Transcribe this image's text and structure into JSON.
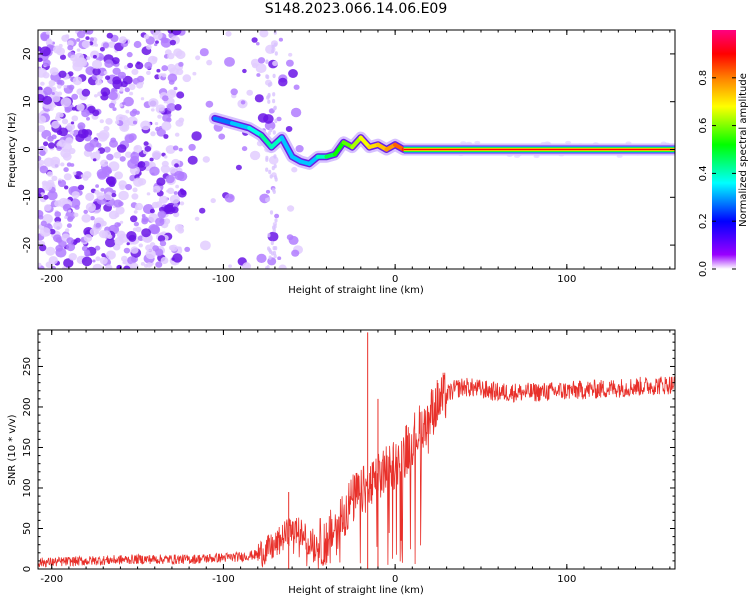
{
  "figure": {
    "title": "S148.2023.066.14.06.E09"
  },
  "colors": {
    "snr_line": "#e8302a",
    "ridge_low": "#6020e0",
    "ridge_high": "#ff2020",
    "noise_light": "#d9b9ff",
    "noise_dark": "#7a1fe8"
  },
  "chart_data": [
    {
      "type": "heatmap",
      "title": "",
      "xlabel": "Height of straight line (km)",
      "ylabel": "Frequency (Hz)",
      "xlim": [
        -208,
        163
      ],
      "ylim": [
        -25,
        25
      ],
      "x_ticks": [
        -200,
        -100,
        0,
        100
      ],
      "y_ticks": [
        -20,
        -10,
        0,
        10,
        20
      ],
      "colorbar": {
        "label": "Normalized spectral amplitude",
        "range": [
          0.0,
          1.0
        ],
        "ticks": [
          "0.0",
          "0.2",
          "0.4",
          "0.6",
          "0.8"
        ],
        "colormap": [
          "#ffffff",
          "#9900ff",
          "#0000ff",
          "#00ffff",
          "#00ff00",
          "#ffff00",
          "#ff8000",
          "#ff0000",
          "#ff0080"
        ]
      },
      "ridge": {
        "x": [
          -105,
          -95,
          -85,
          -78,
          -72,
          -66,
          -60,
          -55,
          -50,
          -45,
          -40,
          -35,
          -30,
          -25,
          -20,
          -15,
          -10,
          -5,
          0,
          5,
          10,
          20,
          40,
          80,
          120,
          163
        ],
        "frequency": [
          6.5,
          5.5,
          4.5,
          3.0,
          0.5,
          2.5,
          -1.5,
          -2.5,
          -3.0,
          -1.5,
          -1.5,
          -1.0,
          1.5,
          0.5,
          2.5,
          0.5,
          1.0,
          0.0,
          1.0,
          0.0,
          0.0,
          0.0,
          0.0,
          0.0,
          0.0,
          0.0
        ],
        "amplitude": [
          0.25,
          0.3,
          0.35,
          0.4,
          0.45,
          0.35,
          0.3,
          0.35,
          0.3,
          0.35,
          0.45,
          0.5,
          0.55,
          0.6,
          0.65,
          0.7,
          0.72,
          0.75,
          0.8,
          0.85,
          0.9,
          0.95,
          0.98,
          1.0,
          1.0,
          1.0
        ]
      },
      "noise_region_x": [
        -208,
        -55
      ]
    },
    {
      "type": "line",
      "title": "",
      "xlabel": "Height of straight line (km)",
      "ylabel": "SNR (10 * v/v)",
      "xlim": [
        -208,
        163
      ],
      "ylim": [
        0,
        295
      ],
      "x_ticks": [
        -200,
        -100,
        0,
        100
      ],
      "y_ticks": [
        0,
        50,
        100,
        150,
        200,
        250
      ],
      "series": [
        {
          "x": [
            -208,
            -180,
            -150,
            -120,
            -100,
            -90,
            -80,
            -70,
            -65,
            -60,
            -55,
            -50,
            -45,
            -40,
            -35,
            -30,
            -25,
            -20,
            -15,
            -10,
            -5,
            0,
            5,
            10,
            15,
            20,
            25,
            30,
            35,
            40,
            50,
            60,
            80,
            100,
            120,
            140,
            163
          ],
          "y": [
            8,
            10,
            12,
            12,
            14,
            15,
            18,
            28,
            40,
            50,
            45,
            35,
            30,
            35,
            50,
            70,
            85,
            95,
            100,
            110,
            125,
            130,
            145,
            160,
            175,
            190,
            205,
            215,
            222,
            225,
            222,
            218,
            218,
            220,
            222,
            225,
            228
          ]
        }
      ],
      "spikes": [
        {
          "x": -16,
          "y": 292
        },
        {
          "x": -10,
          "y": 210
        },
        {
          "x": -62,
          "y": 95
        }
      ]
    }
  ]
}
